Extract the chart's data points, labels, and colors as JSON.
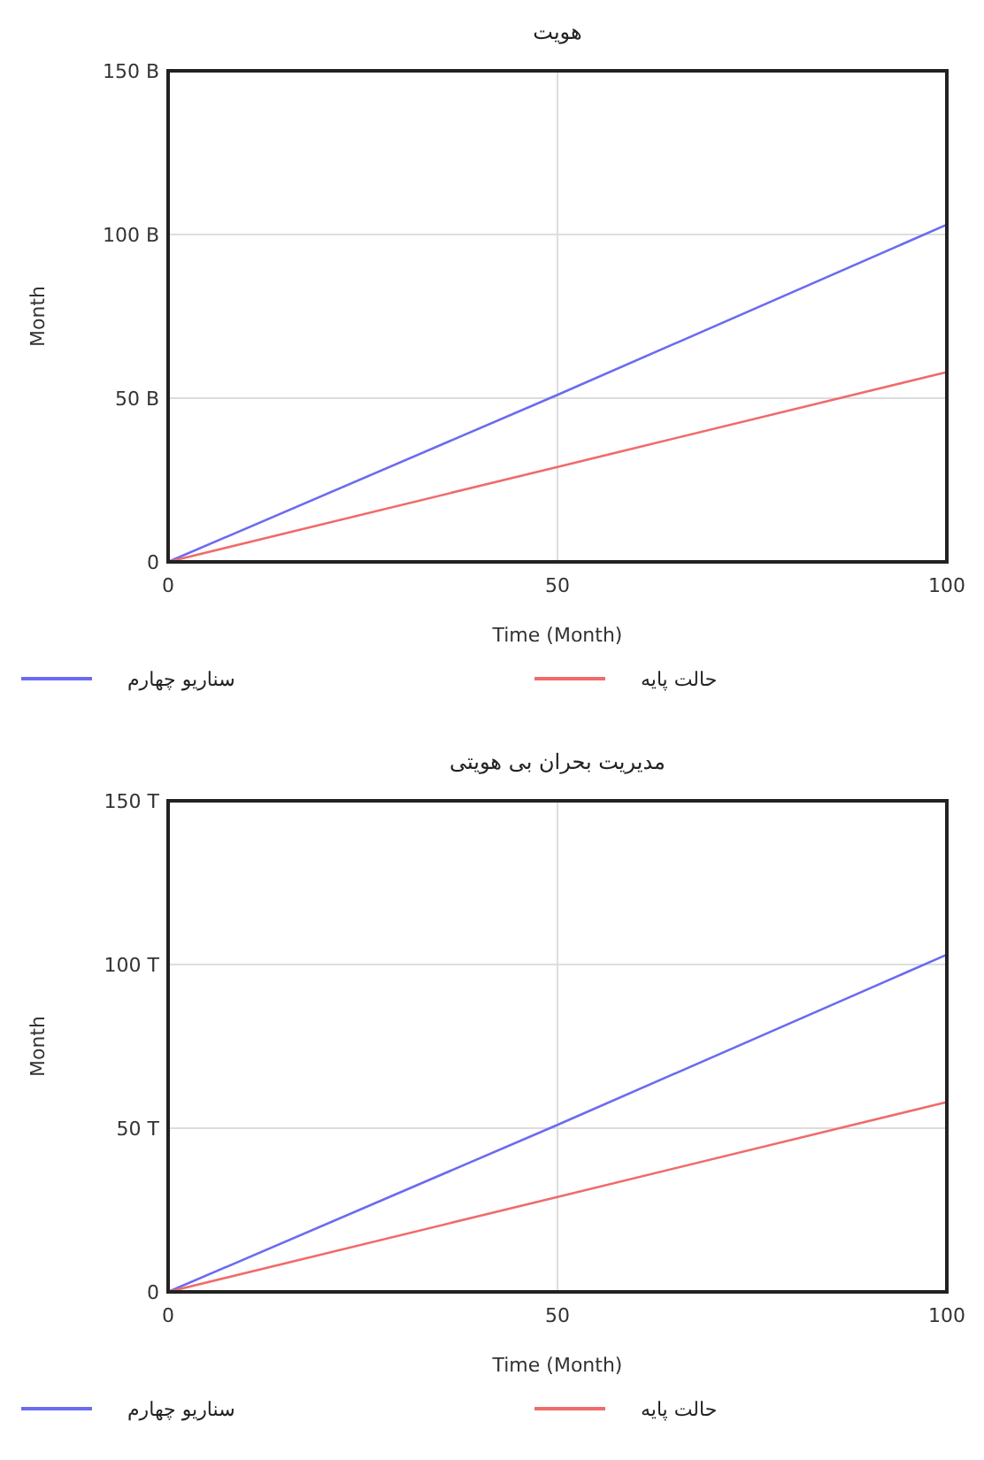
{
  "chart_data": [
    {
      "type": "line",
      "title": "هویت",
      "xlabel": "Time (Month)",
      "ylabel": "Month",
      "x": [
        0,
        50,
        100
      ],
      "series": [
        {
          "name": "سناریو چهارم",
          "color": "#6b6bf0",
          "values": [
            0,
            51,
            103
          ]
        },
        {
          "name": "حالت پایه",
          "color": "#f06b6b",
          "values": [
            0,
            29,
            58
          ]
        }
      ],
      "xlim": [
        0,
        100
      ],
      "xticks": [
        0,
        50,
        100
      ],
      "ylim": [
        0,
        150
      ],
      "yticks": [
        0,
        {
          "value": 50,
          "label": "50 B"
        },
        {
          "value": 100,
          "label": "100 B"
        },
        {
          "value": 150,
          "label": "150 B"
        }
      ],
      "grid": true,
      "legend": "bottom"
    },
    {
      "type": "line",
      "title": "مدیریت بحران بی هویتی",
      "xlabel": "Time (Month)",
      "ylabel": "Month",
      "x": [
        0,
        50,
        100
      ],
      "series": [
        {
          "name": "سناریو چهارم",
          "color": "#6b6bf0",
          "values": [
            0,
            51,
            103
          ]
        },
        {
          "name": "حالت پایه",
          "color": "#f06b6b",
          "values": [
            0,
            29,
            58
          ]
        }
      ],
      "xlim": [
        0,
        100
      ],
      "xticks": [
        0,
        50,
        100
      ],
      "ylim": [
        0,
        150
      ],
      "yticks": [
        0,
        {
          "value": 50,
          "label": "50 T"
        },
        {
          "value": 100,
          "label": "100 T"
        },
        {
          "value": 150,
          "label": "150 T"
        }
      ],
      "grid": true,
      "legend": "bottom"
    }
  ]
}
